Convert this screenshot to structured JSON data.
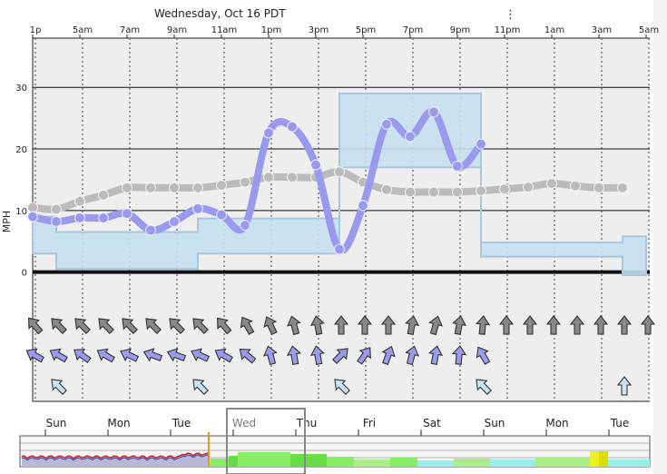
{
  "header": {
    "date_label": "Wednesday, Oct 16 PDT",
    "menu_glyph": "⋮"
  },
  "colors": {
    "plot_bg": "#eeeeee",
    "sustained_line": "#9999ee",
    "gust_line": "#bbbbbb",
    "band_fill": "#c5dff0",
    "band_stroke": "#a8c6de",
    "arrow_gray": "#888888",
    "arrow_blue": "#9b9bee",
    "arrow_pale": "#c8e4f2",
    "history_red": "#cc2222",
    "history_blue": "#3344aa",
    "scrub_green": "#88ee66",
    "scrub_yellow": "#eeee22",
    "scrub_cyan": "#99eeee"
  },
  "chart_data": {
    "type": "line",
    "ylabel": "MPH",
    "ylim": [
      -21,
      38
    ],
    "y_ticks": [
      0,
      10,
      20,
      30
    ],
    "top_axis_ticks": [
      "1p",
      "5am",
      "7am",
      "9am",
      "11am",
      "1pm",
      "3pm",
      "5pm",
      "7pm",
      "9pm",
      "11pm",
      "1am",
      "3am",
      "5am"
    ],
    "series": [
      {
        "style": "sustained",
        "values": [
          9.0,
          8.2,
          8.8,
          8.8,
          9.5,
          6.8,
          8.2,
          10.3,
          9.3,
          7.6,
          22.6,
          23.6,
          17.4,
          3.7,
          10.8,
          24.0,
          22.0,
          26.0,
          17.2,
          20.8
        ]
      },
      {
        "style": "gust",
        "values": [
          10.5,
          10.2,
          11.5,
          12.5,
          13.7,
          13.7,
          13.7,
          13.7,
          14.1,
          14.6,
          15.4,
          15.4,
          15.4,
          16.3,
          14.6,
          13.4,
          13.0,
          13.0,
          13.0,
          13.2,
          13.5,
          13.8,
          14.4,
          14.0,
          13.7,
          13.7
        ]
      }
    ],
    "range_band": {
      "low": [
        3.0,
        0.5,
        0.5,
        0.5,
        0.5,
        0.5,
        0.5,
        3.0,
        3.0,
        3.0,
        3.0,
        3.0,
        3.0,
        17.0,
        17.0,
        17.0,
        17.0,
        17.0,
        17.0,
        2.5,
        2.5,
        2.5,
        2.5,
        2.5,
        2.5,
        -0.5
      ],
      "high": [
        9.0,
        6.5,
        6.5,
        6.5,
        6.5,
        6.5,
        6.5,
        8.7,
        8.7,
        8.7,
        8.7,
        8.7,
        8.7,
        29.0,
        29.0,
        29.0,
        29.0,
        29.0,
        29.0,
        4.8,
        4.8,
        4.8,
        4.8,
        4.8,
        4.8,
        5.8
      ]
    },
    "arrow_rows": [
      {
        "color": "gray",
        "headings": [
          -40,
          -45,
          -45,
          -45,
          -45,
          -45,
          -45,
          -45,
          -40,
          -30,
          -25,
          -15,
          -10,
          0,
          0,
          0,
          10,
          15,
          10,
          5,
          0,
          0,
          0,
          0,
          0,
          0,
          0,
          0
        ]
      },
      {
        "color": "blue",
        "headings": [
          -60,
          -60,
          -55,
          -60,
          -65,
          -70,
          -70,
          -65,
          -60,
          -50,
          -15,
          -10,
          -10,
          45,
          35,
          20,
          15,
          10,
          5,
          -30
        ]
      },
      {
        "color": "pale",
        "indices": [
          1,
          7,
          13,
          19,
          25
        ],
        "headings": [
          -45,
          -45,
          -45,
          -45,
          0
        ]
      }
    ]
  },
  "overview": {
    "day_labels": [
      "Sun",
      "Mon",
      "Tue",
      "Wed",
      "Thu",
      "Fri",
      "Sat",
      "Sun",
      "Mon",
      "Tue"
    ],
    "selected_day": "Wed"
  }
}
